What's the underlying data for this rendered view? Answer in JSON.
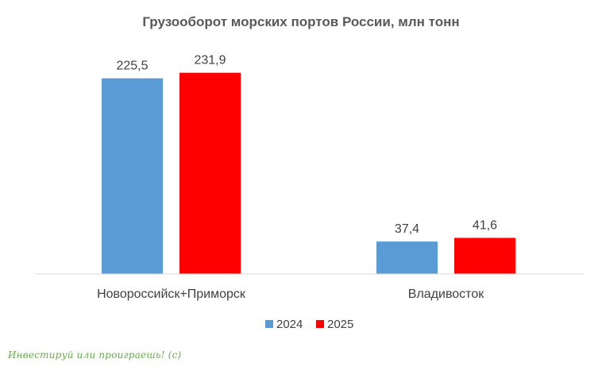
{
  "chart_data": {
    "type": "bar",
    "title": "Грузооборот морских портов России, млн тонн",
    "categories": [
      "Новороссийск+Приморск",
      "Владивосток"
    ],
    "series": [
      {
        "name": "2024",
        "values": [
          225.5,
          37.4
        ],
        "labels": [
          "225,5",
          "37,4"
        ],
        "color": "#5b9bd5"
      },
      {
        "name": "2025",
        "values": [
          231.9,
          41.6
        ],
        "labels": [
          "231,9",
          "41,6"
        ],
        "color": "#ff0000"
      }
    ],
    "ylim": [
      0,
      270
    ],
    "grid": false,
    "legend": "bottom",
    "xlabel": "",
    "ylabel": ""
  },
  "watermark": "Инвестируй или проиграешь! (с)"
}
